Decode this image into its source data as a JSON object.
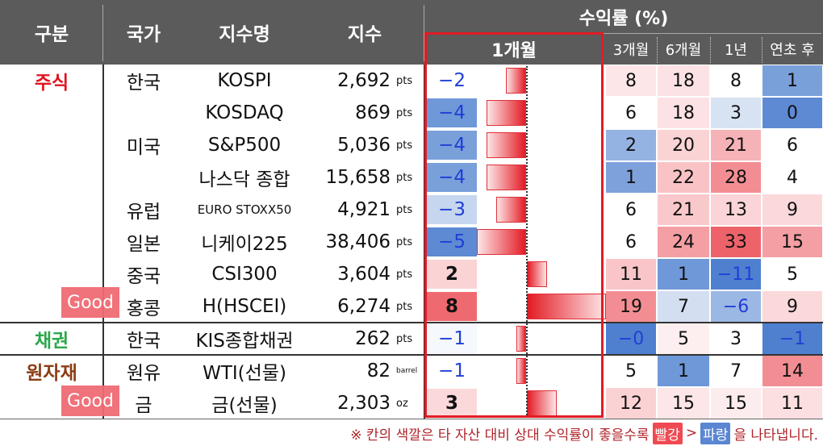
{
  "header": {
    "category": "구분",
    "country": "국가",
    "index_name": "지수명",
    "index_value": "지수",
    "returns_title": "수익률 (%)",
    "col_1m": "1개월",
    "col_3m": "3개월",
    "col_6m": "6개월",
    "col_1y": "1년",
    "col_ytd": "연초 후"
  },
  "categories": {
    "stock": "주식",
    "bond": "채권",
    "commodity": "원자재"
  },
  "rows": [
    {
      "country": "한국",
      "name": "KOSPI",
      "value": "2,692",
      "unit": "pts",
      "r1m": -2,
      "r1m_label": "−2",
      "r3m": "8",
      "r6m": "18",
      "r1y": "8",
      "ytd": "1"
    },
    {
      "country": "",
      "name": "KOSDAQ",
      "value": "869",
      "unit": "pts",
      "r1m": -4,
      "r1m_label": "−4",
      "r3m": "6",
      "r6m": "18",
      "r1y": "3",
      "ytd": "0"
    },
    {
      "country": "미국",
      "name": "S&P500",
      "value": "5,036",
      "unit": "pts",
      "r1m": -4,
      "r1m_label": "−4",
      "r3m": "2",
      "r6m": "20",
      "r1y": "21",
      "ytd": "6"
    },
    {
      "country": "",
      "name": "나스닥 종합",
      "value": "15,658",
      "unit": "pts",
      "r1m": -4,
      "r1m_label": "−4",
      "r3m": "1",
      "r6m": "22",
      "r1y": "28",
      "ytd": "4"
    },
    {
      "country": "유럽",
      "name": "EURO STOXX50",
      "value": "4,921",
      "unit": "pts",
      "r1m": -3,
      "r1m_label": "−3",
      "r3m": "6",
      "r6m": "21",
      "r1y": "13",
      "ytd": "9"
    },
    {
      "country": "일본",
      "name": "니케이225",
      "value": "38,406",
      "unit": "pts",
      "r1m": -5,
      "r1m_label": "−5",
      "r3m": "6",
      "r6m": "24",
      "r1y": "33",
      "ytd": "15"
    },
    {
      "country": "중국",
      "name": "CSI300",
      "value": "3,604",
      "unit": "pts",
      "r1m": 2,
      "r1m_label": "2",
      "r3m": "11",
      "r6m": "1",
      "r1y": "−11",
      "ytd": "5"
    },
    {
      "country": "홍콩",
      "name": "H(HSCEI)",
      "value": "6,274",
      "unit": "pts",
      "r1m": 8,
      "r1m_label": "8",
      "r3m": "19",
      "r6m": "7",
      "r1y": "−6",
      "ytd": "9"
    },
    {
      "country": "한국",
      "name": "KIS종합채권",
      "value": "262",
      "unit": "pts",
      "r1m": -1,
      "r1m_label": "−1",
      "r3m": "−0",
      "r6m": "5",
      "r1y": "3",
      "ytd": "−1"
    },
    {
      "country": "원유",
      "name": "WTI(선물)",
      "value": "82",
      "unit": "barrel",
      "r1m": -1,
      "r1m_label": "−1",
      "r3m": "5",
      "r6m": "1",
      "r1y": "7",
      "ytd": "14"
    },
    {
      "country": "금",
      "name": "금(선물)",
      "value": "2,303",
      "unit": "oz",
      "r1m": 3,
      "r1m_label": "3",
      "r3m": "12",
      "r6m": "15",
      "r1y": "15",
      "ytd": "11"
    }
  ],
  "colors": {
    "r1m": [
      "#ffffff",
      "#ffffff",
      "#ffffff",
      "#ffffff",
      "#ffffff",
      "#ffffff",
      "#ffffff",
      "#ffffff",
      "#ffffff",
      "#ffffff",
      "#ffffff"
    ],
    "r1m_cell": [
      "#ffffff",
      "#6f98d8",
      "#7aa0da",
      "#7aa0da",
      "#c6d6ef",
      "#5d8ad3",
      "#fad3d5",
      "#ef6a70",
      "#f5f8fc",
      "#ffffff",
      "#fbd9db"
    ],
    "r3m": [
      "#fde6e7",
      "#ffffff",
      "#94b2e2",
      "#7ea1dc",
      "#ffffff",
      "#ffffff",
      "#f9c5c8",
      "#f28e93",
      "#4f80cf",
      "#ffffff",
      "#fbd2d4"
    ],
    "r6m": [
      "#fce2e4",
      "#fce2e4",
      "#fad3d5",
      "#f9c3c6",
      "#f9c8cb",
      "#f49fa4",
      "#6f98d8",
      "#d3def1",
      "#fdeff0",
      "#6f98d8",
      "#fce6e7"
    ],
    "r1y": [
      "#ffffff",
      "#d7e2f3",
      "#f6b3b7",
      "#f28e93",
      "#fad4d6",
      "#ee6369",
      "#4f80cf",
      "#9bb7e4",
      "#ffffff",
      "#ffffff",
      "#fdeced"
    ],
    "ytd": [
      "#7aa0da",
      "#5d8ad3",
      "#ffffff",
      "#ffffff",
      "#fbd9db",
      "#f49fa4",
      "#ffffff",
      "#fbd9db",
      "#4f80cf",
      "#f28e93",
      "#fcdfe1"
    ],
    "blue_text": "#1f3fd6",
    "stock_label": "#e0141f",
    "bond_label": "#2aa84a",
    "commodity_label": "#8b3d14",
    "highlight_border": "#e31b25"
  },
  "badges": {
    "good_1": "Good",
    "good_2": "Good"
  },
  "footnote": {
    "prefix": "※ 칸의 색깔은 타 자산 대비 상대 수익률이 좋을수록",
    "red": "빨강",
    "middle": ">",
    "blue": "파랑",
    "suffix": "을 나타냅니다."
  }
}
